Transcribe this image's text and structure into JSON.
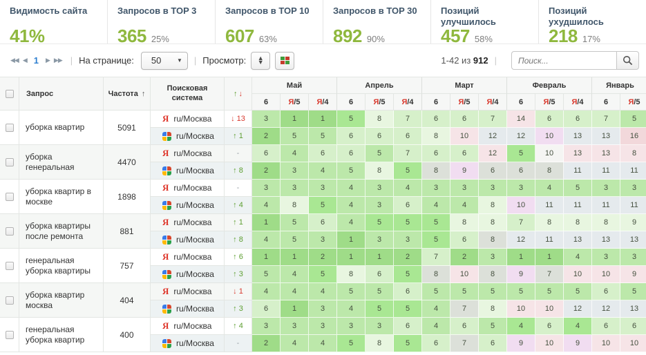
{
  "kpi": [
    {
      "label": "Видимость сайта",
      "value": "41%",
      "sub": ""
    },
    {
      "label": "Запросов в TOP 3",
      "value": "365",
      "sub": "25%"
    },
    {
      "label": "Запросов в TOP 10",
      "value": "607",
      "sub": "63%"
    },
    {
      "label": "Запросов в TOP 30",
      "value": "892",
      "sub": "90%"
    },
    {
      "label": "Позиций улучшилось",
      "value": "457",
      "sub": "58%"
    },
    {
      "label": "Позиций ухудшилось",
      "value": "218",
      "sub": "17%"
    }
  ],
  "toolbar": {
    "page": "1",
    "per_page_label": "На странице:",
    "per_page_value": "50",
    "view_label": "Просмотр:",
    "range_prefix": "1-42 из",
    "range_total": "912",
    "search_placeholder": "Поиск..."
  },
  "table": {
    "headers": {
      "query": "Запрос",
      "frequency": "Частота",
      "frequency_sort": "↑",
      "engine": "Поисковая система",
      "change_up": "↑",
      "change_down": "↓"
    },
    "months": [
      {
        "name": "Май",
        "dates": [
          "6",
          "Я/5",
          "Я/4"
        ]
      },
      {
        "name": "Апрель",
        "dates": [
          "6",
          "Я/5",
          "Я/4"
        ]
      },
      {
        "name": "Март",
        "dates": [
          "6",
          "Я/5",
          "Я/4"
        ]
      },
      {
        "name": "Февраль",
        "dates": [
          "6",
          "Я/5",
          "Я/4"
        ]
      },
      {
        "name": "Январь",
        "dates": [
          "6",
          "Я/5"
        ]
      }
    ],
    "rows": [
      {
        "query": "уборка квартир",
        "frequency": "5091",
        "engines": [
          {
            "engine": "yandex",
            "region": "ru/Москва",
            "change": "↓ 13",
            "dir": "down",
            "cells": [
              "3 g2",
              "1 g1",
              "1 g1",
              "5 gb",
              "8 g4",
              "7 g3",
              "6 g3",
              "6 g3",
              "7 g3",
              "14 pk",
              "6 g3",
              "6 g3",
              "7 g3",
              "5 g2"
            ]
          },
          {
            "engine": "google",
            "region": "ru/Москва",
            "change": "↑ 1",
            "dir": "up",
            "cells": [
              "2 g1",
              "5 g2",
              "5 g2",
              "6 g3",
              "6 g3",
              "6 g3",
              "8 g4",
              "10 pk",
              "12 bl",
              "12 bl",
              "10 lv",
              "13 bl",
              "13 bl",
              "16 pk2"
            ]
          }
        ]
      },
      {
        "query": "уборка генеральная",
        "frequency": "4470",
        "engines": [
          {
            "engine": "yandex",
            "region": "ru/Москва",
            "change": "-",
            "dir": "none",
            "cells": [
              "6 g3",
              "4 g2",
              "6 g3",
              "6 g3",
              "5 g2",
              "7 g3",
              "6 g3",
              "6 g3",
              "12 pk",
              "5 gb",
              "10 wh",
              "13 pk",
              "13 pk",
              "8 pk"
            ]
          },
          {
            "engine": "google",
            "region": "ru/Москва",
            "change": "↑ 8",
            "dir": "up",
            "cells": [
              "2 g1",
              "3 g2",
              "4 g2",
              "5 g2",
              "8 g4",
              "5 gb",
              "8 gy",
              "9 lv",
              "6 gy",
              "6 gy",
              "8 gy",
              "11 bl",
              "11 bl",
              "11 bl"
            ]
          }
        ]
      },
      {
        "query": "уборка квартир в москве",
        "frequency": "1898",
        "engines": [
          {
            "engine": "yandex",
            "region": "ru/Москва",
            "change": "-",
            "dir": "none",
            "cells": [
              "3 g2",
              "3 g2",
              "3 g2",
              "4 g2",
              "3 g2",
              "4 g2",
              "3 g2",
              "3 g2",
              "3 g2",
              "3 g2",
              "4 g2",
              "5 g2",
              "3 g2",
              "3 g2"
            ]
          },
          {
            "engine": "google",
            "region": "ru/Москва",
            "change": "↑ 4",
            "dir": "up",
            "cells": [
              "4 g2",
              "8 g4",
              "5 gb",
              "4 g2",
              "3 g2",
              "6 g3",
              "4 g2",
              "4 g2",
              "8 g4",
              "10 lv",
              "11 bl",
              "11 bl",
              "11 bl",
              "11 bl"
            ]
          }
        ]
      },
      {
        "query": "уборка квартиры после ремонта",
        "frequency": "881",
        "engines": [
          {
            "engine": "yandex",
            "region": "ru/Москва",
            "change": "↑ 1",
            "dir": "up",
            "cells": [
              "1 g1",
              "5 g2",
              "6 g3",
              "4 g2",
              "5 gb",
              "5 gb",
              "5 gb",
              "8 g4",
              "8 g4",
              "7 g3",
              "8 g4",
              "8 g4",
              "8 g4",
              "9 g4"
            ]
          },
          {
            "engine": "google",
            "region": "ru/Москва",
            "change": "↑ 8",
            "dir": "up",
            "cells": [
              "4 g2",
              "5 g2",
              "3 g2",
              "1 g1",
              "3 g2",
              "3 g2",
              "5 gb",
              "6 g3",
              "8 gy",
              "12 bl",
              "11 bl",
              "13 bl",
              "13 bl",
              "13 bl"
            ]
          }
        ]
      },
      {
        "query": "генеральная уборка квартиры",
        "frequency": "757",
        "engines": [
          {
            "engine": "yandex",
            "region": "ru/Москва",
            "change": "↑ 6",
            "dir": "up",
            "cells": [
              "1 g1",
              "1 g1",
              "2 g1",
              "1 g1",
              "1 g1",
              "2 g1",
              "7 g3",
              "2 g1",
              "3 g2",
              "1 g1",
              "1 g1",
              "4 g2",
              "3 g2",
              "3 g2"
            ]
          },
          {
            "engine": "google",
            "region": "ru/Москва",
            "change": "↑ 3",
            "dir": "up",
            "cells": [
              "5 g2",
              "4 g2",
              "5 gb",
              "8 g4",
              "6 g3",
              "5 gb",
              "8 gy",
              "10 pk",
              "8 gy",
              "9 lv",
              "7 gy",
              "10 pk",
              "10 pk",
              "9 pk"
            ]
          }
        ]
      },
      {
        "query": "уборка квартир москва",
        "frequency": "404",
        "engines": [
          {
            "engine": "yandex",
            "region": "ru/Москва",
            "change": "↓ 1",
            "dir": "down",
            "cells": [
              "4 g2",
              "4 g2",
              "4 g2",
              "5 g2",
              "5 g2",
              "6 g3",
              "5 g2",
              "5 g2",
              "5 g2",
              "5 g2",
              "5 g2",
              "5 g2",
              "6 g3",
              "5 g2"
            ]
          },
          {
            "engine": "google",
            "region": "ru/Москва",
            "change": "↑ 3",
            "dir": "up",
            "cells": [
              "6 g3",
              "1 g1",
              "3 g2",
              "4 g2",
              "5 gb",
              "5 gb",
              "4 g2",
              "7 gy",
              "8 g4",
              "10 pk",
              "10 pk",
              "12 bl",
              "12 bl",
              "13 bl"
            ]
          }
        ]
      },
      {
        "query": "генеральная уборка квартир",
        "frequency": "400",
        "engines": [
          {
            "engine": "yandex",
            "region": "ru/Москва",
            "change": "↑ 4",
            "dir": "up",
            "cells": [
              "3 g2",
              "3 g2",
              "3 g2",
              "3 g2",
              "3 g2",
              "6 g3",
              "4 g2",
              "6 g3",
              "5 g2",
              "4 gb",
              "6 g3",
              "4 gb",
              "6 g3",
              "6 g3"
            ]
          },
          {
            "engine": "google",
            "region": "ru/Москва",
            "change": "-",
            "dir": "none",
            "cells": [
              "2 g1",
              "4 g2",
              "4 g2",
              "5 gb",
              "8 g4",
              "5 gb",
              "6 g3",
              "7 gy",
              "6 g3",
              "9 lv",
              "10 pk",
              "9 lv",
              "10 pk",
              "10 pk"
            ]
          }
        ]
      }
    ]
  }
}
